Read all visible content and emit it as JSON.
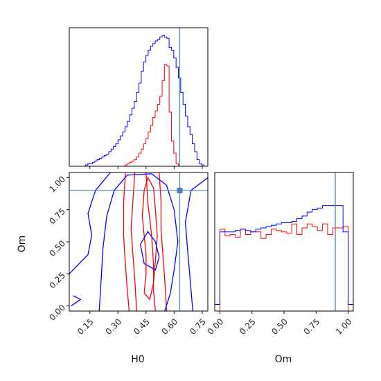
{
  "chart_data": {
    "type": "corner",
    "parameters": [
      "H0",
      "Om"
    ],
    "truths": {
      "H0": 0.63,
      "Om": 0.9
    },
    "truth_color": "#4682b4",
    "series": [
      {
        "color": "#ff0000"
      },
      {
        "color": "#0000ff"
      }
    ],
    "panels": [
      {
        "id": "hist-h0",
        "type": "histogram",
        "param": "H0",
        "xlim": [
          0.04,
          0.78
        ],
        "bin_edges": [
          0.04,
          0.0524,
          0.0648,
          0.0772,
          0.0896,
          0.102,
          0.1144,
          0.1268,
          0.1392,
          0.1516,
          0.164,
          0.1764,
          0.1888,
          0.2012,
          0.2136,
          0.226,
          0.2384,
          0.2508,
          0.2632,
          0.2756,
          0.288,
          0.3004,
          0.3128,
          0.3252,
          0.3376,
          0.35,
          0.3624,
          0.3748,
          0.3872,
          0.3996,
          0.412,
          0.4244,
          0.4368,
          0.4492,
          0.4616,
          0.474,
          0.4864,
          0.4988,
          0.5112,
          0.5236,
          0.536,
          0.5484,
          0.5608,
          0.5732,
          0.5856,
          0.598,
          0.6104,
          0.6228,
          0.6352,
          0.6476,
          0.66,
          0.6724,
          0.6848,
          0.6972,
          0.7096,
          0.722,
          0.7344,
          0.7468,
          0.7592,
          0.7716
        ],
        "counts": [
          [
            0,
            0,
            0,
            0,
            0,
            0,
            0,
            0,
            0,
            0,
            0,
            0,
            0,
            0,
            0,
            0,
            0,
            0,
            0,
            0,
            0,
            0,
            0,
            0,
            0.01,
            0.02,
            0.03,
            0.04,
            0.05,
            0.07,
            0.1,
            0.13,
            0.17,
            0.21,
            0.26,
            0.31,
            0.37,
            0.42,
            0.47,
            0.53,
            0.65,
            0.77,
            0.76,
            0.41,
            0.19,
            0.1,
            0.02,
            0,
            0,
            0,
            0,
            0,
            0,
            0,
            0,
            0,
            0,
            0,
            0
          ],
          [
            0,
            0,
            0,
            0,
            0,
            0,
            0,
            0.01,
            0.02,
            0.02,
            0.03,
            0.04,
            0.05,
            0.06,
            0.07,
            0.08,
            0.09,
            0.11,
            0.13,
            0.15,
            0.17,
            0.2,
            0.23,
            0.26,
            0.3,
            0.34,
            0.39,
            0.44,
            0.49,
            0.56,
            0.63,
            0.72,
            0.79,
            0.84,
            0.88,
            0.91,
            0.93,
            0.95,
            0.96,
            0.98,
            0.99,
            0.98,
            0.97,
            0.9,
            0.88,
            0.82,
            0.75,
            0.67,
            0.56,
            0.47,
            0.38,
            0.3,
            0.24,
            0.17,
            0.11,
            0.05,
            0.02,
            0.01,
            0
          ]
        ],
        "ylim": [
          0,
          1.05
        ]
      },
      {
        "id": "hist-om",
        "type": "histogram",
        "param": "Om",
        "xlim": [
          -0.04,
          1.04
        ],
        "bin_edges": [
          -0.04,
          0.0,
          0.04,
          0.08,
          0.12,
          0.16,
          0.2,
          0.24,
          0.28,
          0.32,
          0.36,
          0.4,
          0.44,
          0.48,
          0.52,
          0.56,
          0.6,
          0.64,
          0.68,
          0.72,
          0.76,
          0.8,
          0.84,
          0.88,
          0.92,
          0.96,
          1.0,
          1.04
        ],
        "counts": [
          [
            0.0,
            0.62,
            0.57,
            0.58,
            0.56,
            0.62,
            0.58,
            0.6,
            0.6,
            0.55,
            0.58,
            0.62,
            0.61,
            0.6,
            0.59,
            0.66,
            0.58,
            0.63,
            0.66,
            0.64,
            0.61,
            0.66,
            0.58,
            0.63,
            0.63,
            0.64,
            0.0
          ],
          [
            0.05,
            0.6,
            0.6,
            0.6,
            0.61,
            0.62,
            0.61,
            0.6,
            0.62,
            0.63,
            0.64,
            0.65,
            0.66,
            0.67,
            0.67,
            0.68,
            0.7,
            0.72,
            0.75,
            0.77,
            0.78,
            0.8,
            0.8,
            0.8,
            0.8,
            0.6,
            0.05
          ]
        ],
        "ylim": [
          0,
          1.05
        ]
      },
      {
        "id": "contour-h0-om",
        "type": "contour",
        "x_param": "H0",
        "y_param": "Om",
        "xlim": [
          0.04,
          0.78
        ],
        "ylim": [
          -0.04,
          1.04
        ],
        "series_contours": [
          [
            [
              [
                0.36,
                -0.04
              ],
              [
                0.35,
                0.12
              ],
              [
                0.34,
                0.32
              ],
              [
                0.33,
                0.55
              ],
              [
                0.33,
                0.8
              ],
              [
                0.34,
                1.04
              ]
            ],
            [
              [
                0.45,
                1.04
              ],
              [
                0.46,
                0.8
              ],
              [
                0.48,
                0.55
              ],
              [
                0.49,
                0.32
              ],
              [
                0.49,
                0.12
              ],
              [
                0.5,
                -0.04
              ]
            ],
            [
              [
                0.4,
                -0.04
              ],
              [
                0.39,
                0.2
              ],
              [
                0.38,
                0.4
              ],
              [
                0.37,
                0.6
              ],
              [
                0.38,
                0.82
              ],
              [
                0.39,
                1.04
              ]
            ],
            [
              [
                0.52,
                1.04
              ],
              [
                0.53,
                0.82
              ],
              [
                0.53,
                0.6
              ],
              [
                0.54,
                0.4
              ],
              [
                0.55,
                0.2
              ],
              [
                0.56,
                -0.04
              ]
            ],
            [
              [
                0.44,
                0.1
              ],
              [
                0.45,
                0.25
              ],
              [
                0.45,
                0.4
              ],
              [
                0.44,
                0.55
              ],
              [
                0.43,
                0.7
              ],
              [
                0.44,
                0.9
              ],
              [
                0.46,
                1.0
              ],
              [
                0.49,
                0.92
              ],
              [
                0.5,
                0.75
              ],
              [
                0.51,
                0.55
              ],
              [
                0.5,
                0.35
              ],
              [
                0.49,
                0.18
              ],
              [
                0.47,
                0.05
              ],
              [
                0.44,
                0.1
              ]
            ]
          ],
          [
            [
              [
                0.04,
                0.25
              ],
              [
                0.14,
                0.4
              ],
              [
                0.16,
                0.55
              ],
              [
                0.14,
                0.72
              ],
              [
                0.18,
                0.9
              ],
              [
                0.26,
                1.04
              ]
            ],
            [
              [
                0.7,
                -0.04
              ],
              [
                0.68,
                0.3
              ],
              [
                0.66,
                0.65
              ],
              [
                0.69,
                0.9
              ],
              [
                0.78,
                1.0
              ]
            ],
            [
              [
                0.2,
                -0.04
              ],
              [
                0.21,
                0.2
              ],
              [
                0.22,
                0.45
              ],
              [
                0.24,
                0.7
              ],
              [
                0.28,
                0.9
              ],
              [
                0.35,
                1.02
              ],
              [
                0.48,
                1.03
              ],
              [
                0.56,
                0.94
              ],
              [
                0.6,
                0.75
              ],
              [
                0.62,
                0.5
              ],
              [
                0.6,
                0.28
              ],
              [
                0.58,
                0.1
              ],
              [
                0.55,
                -0.04
              ]
            ],
            [
              [
                0.05,
                0.0
              ],
              [
                0.1,
                0.05
              ],
              [
                0.06,
                0.08
              ]
            ],
            [
              [
                0.42,
                0.48
              ],
              [
                0.46,
                0.58
              ],
              [
                0.5,
                0.5
              ],
              [
                0.52,
                0.38
              ],
              [
                0.5,
                0.28
              ],
              [
                0.44,
                0.33
              ],
              [
                0.42,
                0.48
              ]
            ]
          ]
        ]
      }
    ],
    "axes": {
      "H0": {
        "ticks": [
          0.15,
          0.3,
          0.45,
          0.6,
          0.75
        ],
        "tick_labels": [
          "0.15",
          "0.30",
          "0.45",
          "0.60",
          "0.75"
        ],
        "xlabel": "H0"
      },
      "Om": {
        "ticks": [
          0.0,
          0.25,
          0.5,
          0.75,
          1.0
        ],
        "tick_labels": [
          "0.00",
          "0.25",
          "0.50",
          "0.75",
          "1.00"
        ],
        "xlabel": "Om",
        "ylabel": "Om"
      }
    },
    "grid": false,
    "legend": "none"
  }
}
